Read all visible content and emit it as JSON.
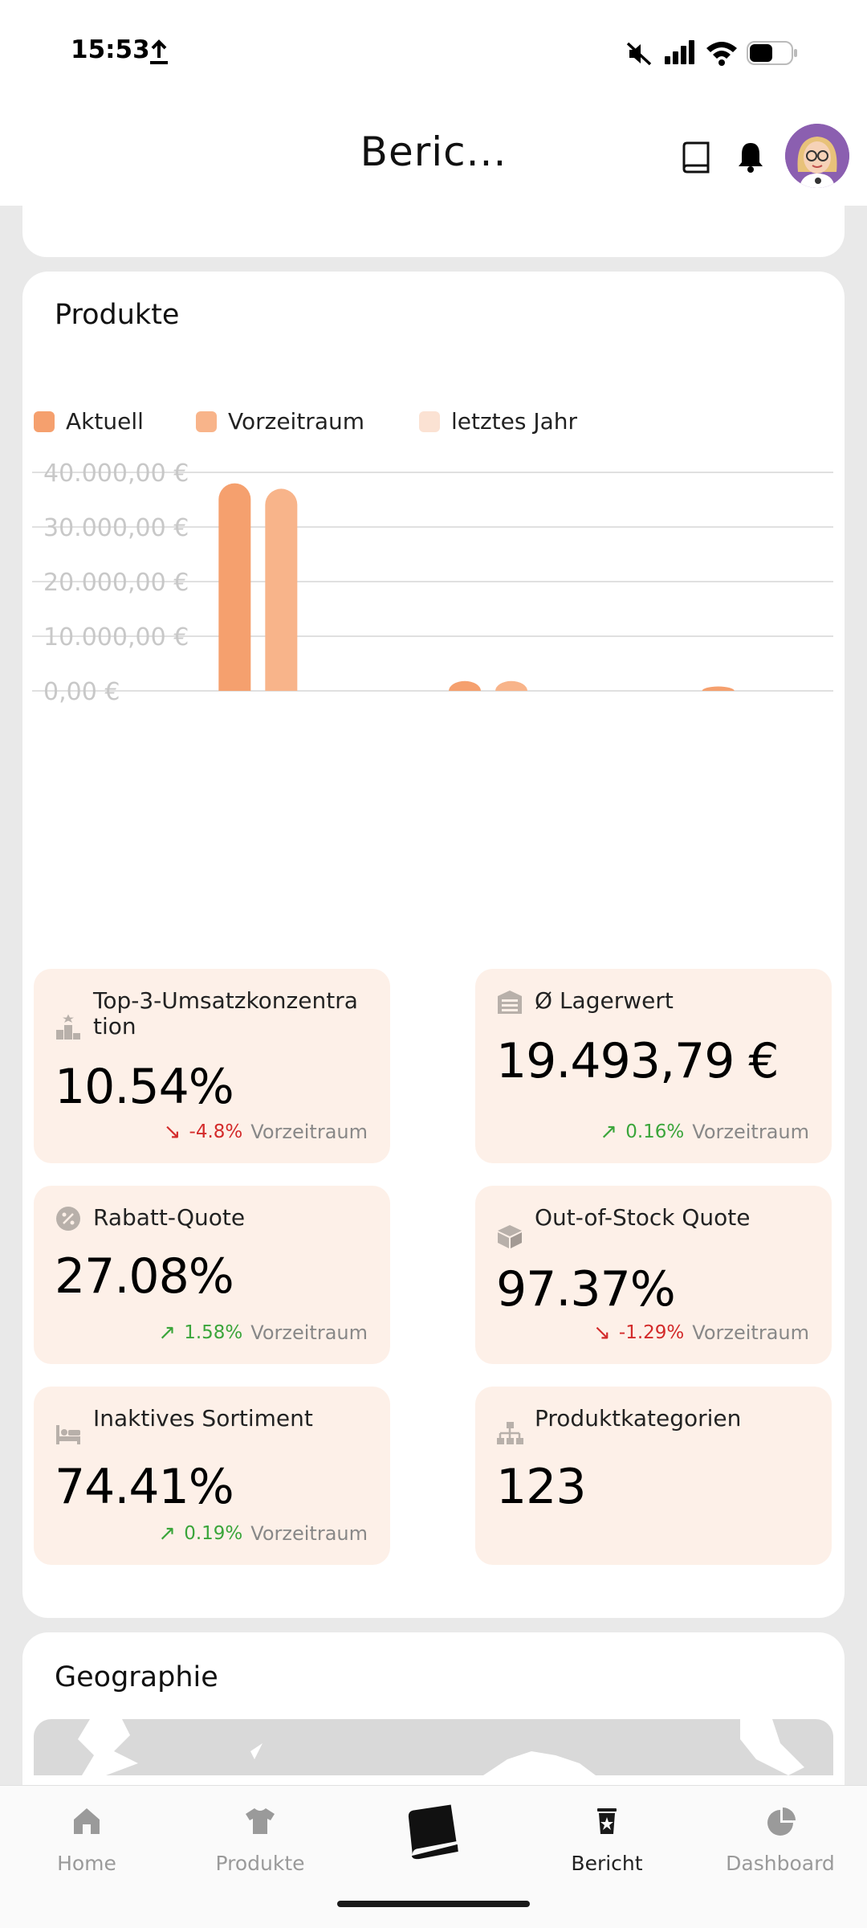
{
  "status_bar": {
    "time": "15:53"
  },
  "header": {
    "title": "Beric..."
  },
  "products_card": {
    "title": "Produkte",
    "legend": [
      {
        "label": "Aktuell",
        "color": "#f5a06e"
      },
      {
        "label": "Vorzeitraum",
        "color": "#f8b48a"
      },
      {
        "label": "letztes Jahr",
        "color": "#fbe2d3"
      }
    ]
  },
  "chart_data": {
    "type": "bar",
    "y_tick_labels": [
      "40.000,00 €",
      "30.000,00 €",
      "20.000,00 €",
      "10.000,00 €",
      "0,00 €"
    ],
    "ylim": [
      0,
      40000
    ],
    "grid": true,
    "legend_position": "top-left",
    "groups": 3,
    "series": [
      {
        "name": "Aktuell",
        "color": "#f5a06e",
        "values": [
          38000,
          1800,
          800
        ]
      },
      {
        "name": "Vorzeitraum",
        "color": "#f8b48a",
        "values": [
          37000,
          1800,
          0
        ]
      },
      {
        "name": "letztes Jahr",
        "color": "#fbe2d3",
        "values": [
          0,
          0,
          0
        ]
      }
    ]
  },
  "kpis": [
    {
      "title": "Top-3-Umsatzkonzentra tion",
      "icon": "ranking-icon",
      "value": "10.54%",
      "delta": "-4.8%",
      "direction": "down",
      "period": "Vorzeitraum"
    },
    {
      "title": "Ø Lagerwert",
      "icon": "warehouse-icon",
      "value": "19.493,79 €",
      "delta": "0.16%",
      "direction": "up",
      "period": "Vorzeitraum"
    },
    {
      "title": "Rabatt-Quote",
      "icon": "discount-icon",
      "value": "27.08%",
      "delta": "1.58%",
      "direction": "up",
      "period": "Vorzeitraum"
    },
    {
      "title": "Out-of-Stock Quote",
      "icon": "box-icon",
      "value": "97.37%",
      "delta": "-1.29%",
      "direction": "down",
      "period": "Vorzeitraum"
    },
    {
      "title": "Inaktives Sortiment",
      "icon": "bed-icon",
      "value": "74.41%",
      "delta": "0.19%",
      "direction": "up",
      "period": "Vorzeitraum"
    },
    {
      "title": "Produktkategorien",
      "icon": "hierarchy-icon",
      "value": "123",
      "delta": "",
      "direction": "",
      "period": ""
    }
  ],
  "geo_card": {
    "title": "Geographie"
  },
  "bottom_nav": [
    {
      "label": "Home",
      "icon": "home-icon",
      "active": false
    },
    {
      "label": "Produkte",
      "icon": "shirt-icon",
      "active": false
    },
    {
      "label": "",
      "icon": "book-icon",
      "active": false
    },
    {
      "label": "Bericht",
      "icon": "report-icon",
      "active": true
    },
    {
      "label": "Dashboard",
      "icon": "pie-chart-icon",
      "active": false
    }
  ]
}
